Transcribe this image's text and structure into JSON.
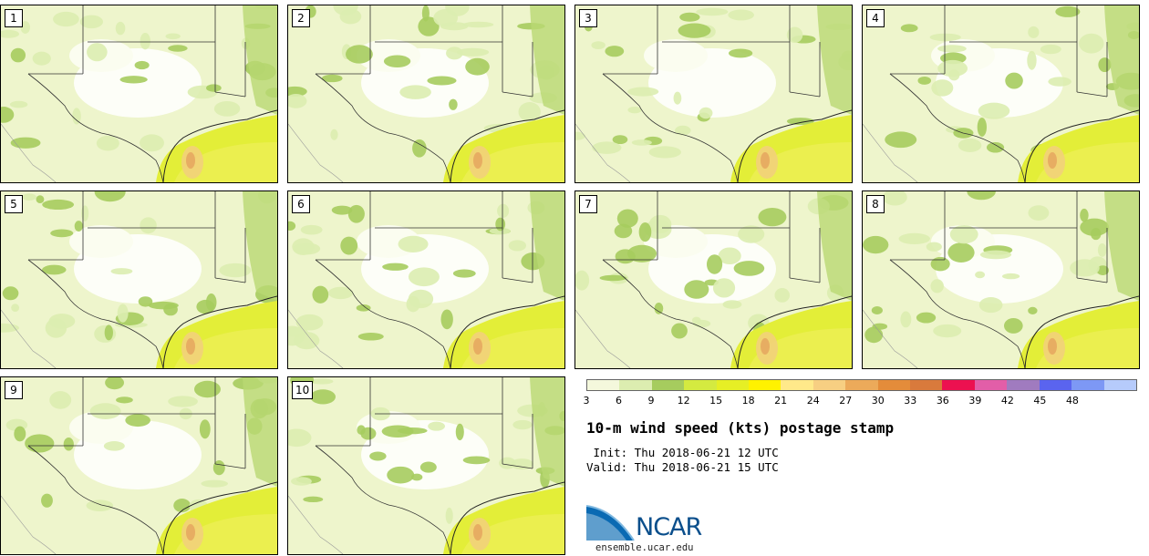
{
  "panels": [
    {
      "label": "1"
    },
    {
      "label": "2"
    },
    {
      "label": "3"
    },
    {
      "label": "4"
    },
    {
      "label": "5"
    },
    {
      "label": "6"
    },
    {
      "label": "7"
    },
    {
      "label": "8"
    },
    {
      "label": "9"
    },
    {
      "label": "10"
    }
  ],
  "colorbar": {
    "ticks": [
      "3",
      "6",
      "9",
      "12",
      "15",
      "18",
      "21",
      "24",
      "27",
      "30",
      "33",
      "36",
      "39",
      "42",
      "45",
      "48"
    ],
    "colors": [
      "#f4f8dc",
      "#dcedb0",
      "#a6cc5e",
      "#d4ea40",
      "#e6ef25",
      "#fff200",
      "#ffe98a",
      "#f7cf82",
      "#ecaa5a",
      "#e48c3a",
      "#d97a3c",
      "#ec1150",
      "#e25ea8",
      "#a07bbf",
      "#5a64ef",
      "#7d98f5",
      "#b6cbfb"
    ]
  },
  "title": "10-m wind speed (kts) postage stamp",
  "init": " Init: Thu 2018-06-21 12 UTC",
  "valid": "Valid: Thu 2018-06-21 15 UTC",
  "logo": {
    "text": "NCAR",
    "url": "ensemble.ucar.edu"
  }
}
